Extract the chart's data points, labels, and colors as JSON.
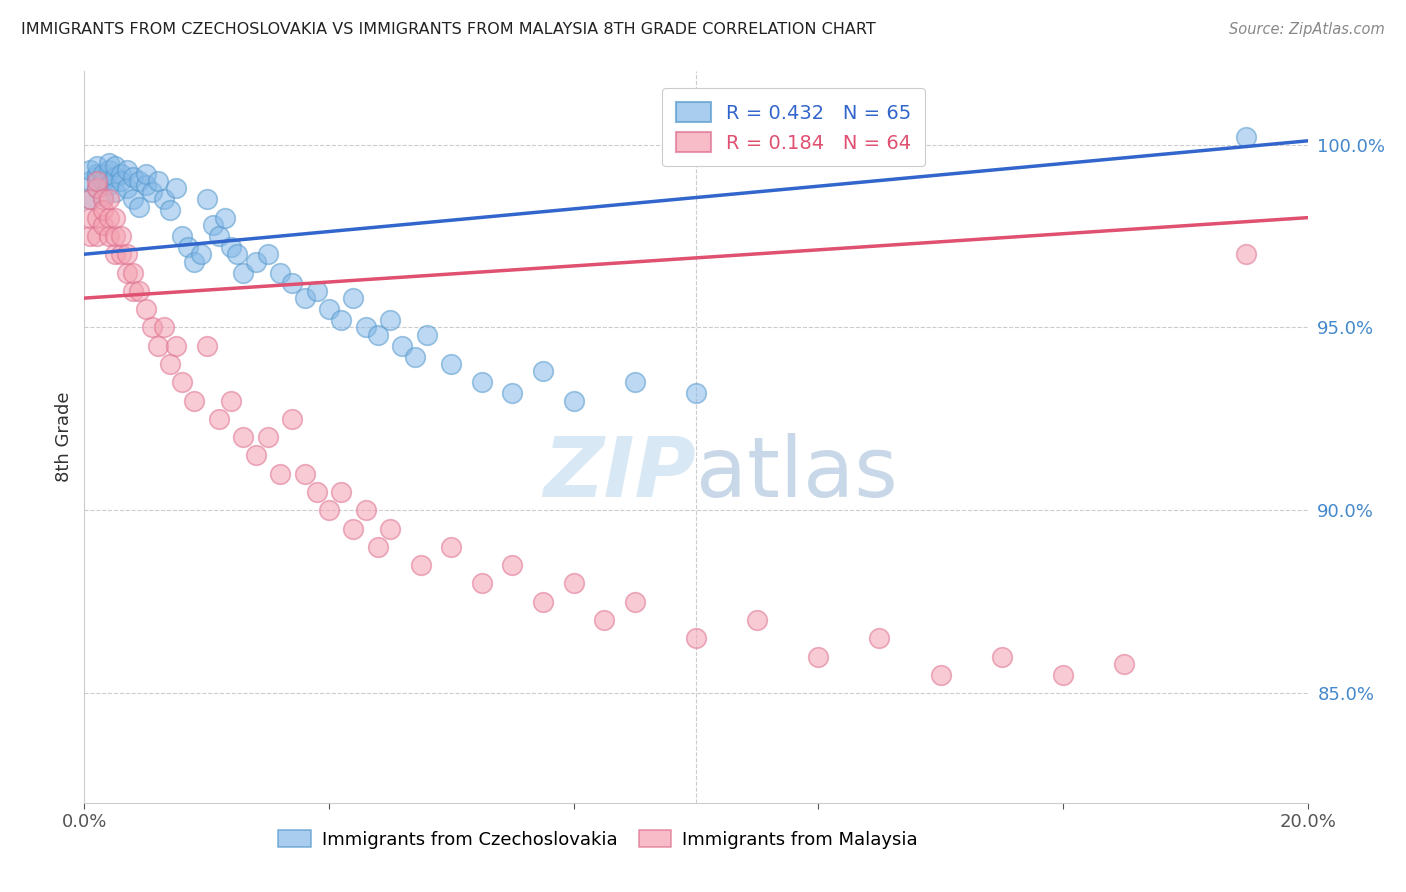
{
  "title": "IMMIGRANTS FROM CZECHOSLOVAKIA VS IMMIGRANTS FROM MALAYSIA 8TH GRADE CORRELATION CHART",
  "source": "Source: ZipAtlas.com",
  "ylabel": "8th Grade",
  "y_ticks": [
    85.0,
    90.0,
    95.0,
    100.0
  ],
  "y_tick_labels": [
    "85.0%",
    "90.0%",
    "95.0%",
    "100.0%"
  ],
  "legend_blue_r": "R = 0.432",
  "legend_blue_n": "N = 65",
  "legend_pink_r": "R = 0.184",
  "legend_pink_n": "N = 64",
  "blue_color": "#85B8E8",
  "pink_color": "#F4A0B0",
  "blue_line_color": "#3366CC",
  "pink_line_color": "#E05070",
  "blue_edge_color": "#5599CC",
  "pink_edge_color": "#DD7090",
  "xlim": [
    0.0,
    0.2
  ],
  "ylim": [
    82.0,
    102.0
  ],
  "blue_x": [
    0.001,
    0.001,
    0.001,
    0.002,
    0.002,
    0.002,
    0.002,
    0.003,
    0.003,
    0.003,
    0.004,
    0.004,
    0.004,
    0.005,
    0.005,
    0.005,
    0.006,
    0.006,
    0.007,
    0.007,
    0.008,
    0.008,
    0.009,
    0.009,
    0.01,
    0.01,
    0.011,
    0.012,
    0.013,
    0.014,
    0.015,
    0.016,
    0.017,
    0.018,
    0.019,
    0.02,
    0.021,
    0.022,
    0.023,
    0.024,
    0.025,
    0.026,
    0.028,
    0.03,
    0.032,
    0.034,
    0.036,
    0.038,
    0.04,
    0.042,
    0.044,
    0.046,
    0.048,
    0.05,
    0.052,
    0.054,
    0.056,
    0.06,
    0.065,
    0.07,
    0.075,
    0.08,
    0.09,
    0.1,
    0.19
  ],
  "blue_y": [
    98.5,
    99.0,
    99.3,
    99.1,
    99.2,
    98.8,
    99.4,
    99.0,
    99.2,
    98.6,
    99.3,
    99.5,
    98.9,
    99.1,
    99.4,
    98.7,
    99.2,
    99.0,
    99.3,
    98.8,
    99.1,
    98.5,
    99.0,
    98.3,
    98.9,
    99.2,
    98.7,
    99.0,
    98.5,
    98.2,
    98.8,
    97.5,
    97.2,
    96.8,
    97.0,
    98.5,
    97.8,
    97.5,
    98.0,
    97.2,
    97.0,
    96.5,
    96.8,
    97.0,
    96.5,
    96.2,
    95.8,
    96.0,
    95.5,
    95.2,
    95.8,
    95.0,
    94.8,
    95.2,
    94.5,
    94.2,
    94.8,
    94.0,
    93.5,
    93.2,
    93.8,
    93.0,
    93.5,
    93.2,
    100.2
  ],
  "pink_x": [
    0.001,
    0.001,
    0.001,
    0.002,
    0.002,
    0.002,
    0.002,
    0.003,
    0.003,
    0.003,
    0.004,
    0.004,
    0.004,
    0.005,
    0.005,
    0.005,
    0.006,
    0.006,
    0.007,
    0.007,
    0.008,
    0.008,
    0.009,
    0.01,
    0.011,
    0.012,
    0.013,
    0.014,
    0.015,
    0.016,
    0.018,
    0.02,
    0.022,
    0.024,
    0.026,
    0.028,
    0.03,
    0.032,
    0.034,
    0.036,
    0.038,
    0.04,
    0.042,
    0.044,
    0.046,
    0.048,
    0.05,
    0.055,
    0.06,
    0.065,
    0.07,
    0.075,
    0.08,
    0.085,
    0.09,
    0.1,
    0.11,
    0.12,
    0.13,
    0.14,
    0.15,
    0.16,
    0.17,
    0.19
  ],
  "pink_y": [
    97.5,
    98.0,
    98.5,
    98.0,
    98.8,
    97.5,
    99.0,
    98.5,
    97.8,
    98.2,
    98.0,
    97.5,
    98.5,
    97.0,
    97.5,
    98.0,
    97.0,
    97.5,
    96.5,
    97.0,
    96.0,
    96.5,
    96.0,
    95.5,
    95.0,
    94.5,
    95.0,
    94.0,
    94.5,
    93.5,
    93.0,
    94.5,
    92.5,
    93.0,
    92.0,
    91.5,
    92.0,
    91.0,
    92.5,
    91.0,
    90.5,
    90.0,
    90.5,
    89.5,
    90.0,
    89.0,
    89.5,
    88.5,
    89.0,
    88.0,
    88.5,
    87.5,
    88.0,
    87.0,
    87.5,
    86.5,
    87.0,
    86.0,
    86.5,
    85.5,
    86.0,
    85.5,
    85.8,
    97.0
  ]
}
